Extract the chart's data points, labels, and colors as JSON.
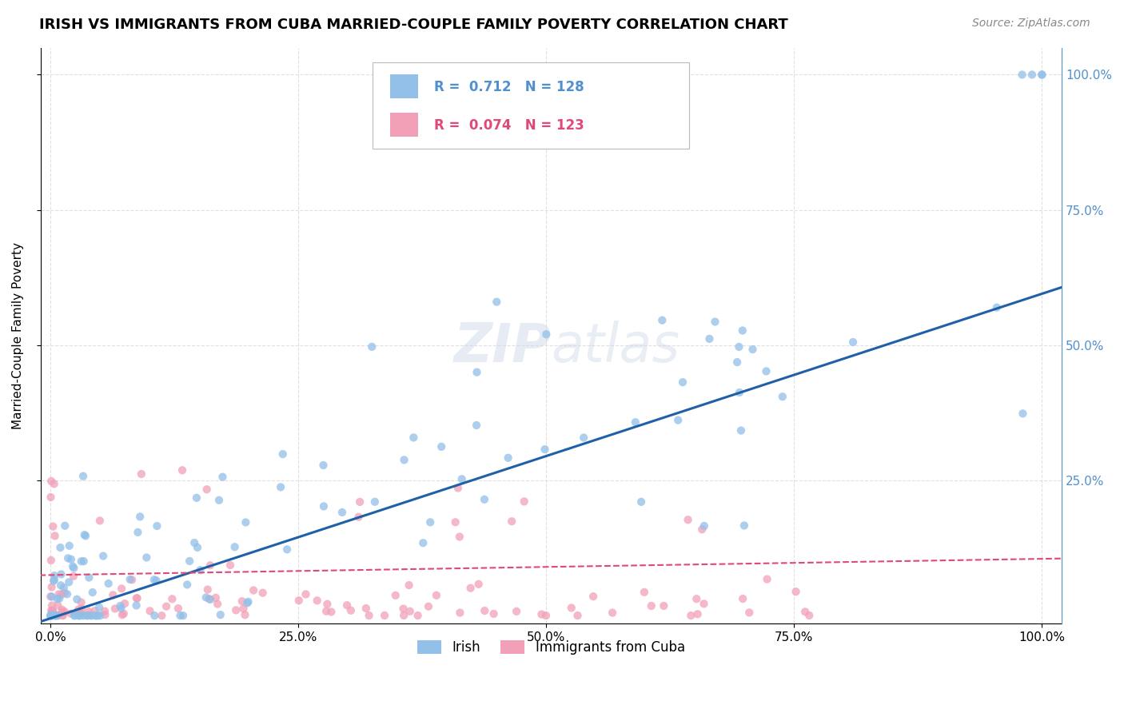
{
  "title": "IRISH VS IMMIGRANTS FROM CUBA MARRIED-COUPLE FAMILY POVERTY CORRELATION CHART",
  "source": "Source: ZipAtlas.com",
  "ylabel": "Married-Couple Family Poverty",
  "irish_color": "#92c0e8",
  "cuba_color": "#f2a0b8",
  "irish_line_color": "#2060a8",
  "cuba_line_color": "#e04878",
  "irish_R": 0.712,
  "irish_N": 128,
  "cuba_R": 0.074,
  "cuba_N": 123,
  "right_tick_color": "#5090cc",
  "watermark_zip": "ZIP",
  "watermark_atlas": "atlas",
  "background_color": "#ffffff",
  "grid_color": "#dddddd",
  "title_fontsize": 13,
  "source_fontsize": 10,
  "tick_fontsize": 11,
  "ylabel_fontsize": 11
}
